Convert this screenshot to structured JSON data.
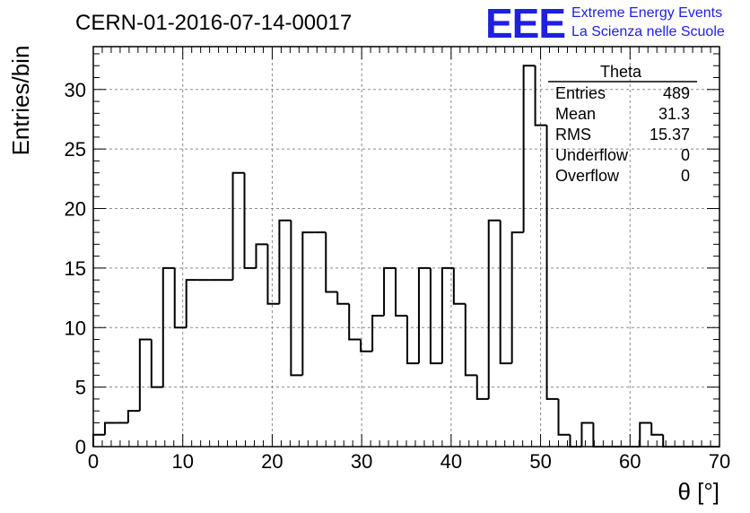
{
  "header": {
    "run_id": "CERN-01-2016-07-14-00017",
    "logo_mark": "EEE",
    "logo_line1": "Extreme Energy Events",
    "logo_line2": "La Scienza nelle Scuole",
    "logo_color": "#1f1fe0"
  },
  "stats": {
    "title": "Theta",
    "rows": [
      {
        "label": "Entries",
        "value": "489"
      },
      {
        "label": "Mean",
        "value": "31.3"
      },
      {
        "label": "RMS",
        "value": "15.37"
      },
      {
        "label": "Underflow",
        "value": "0"
      },
      {
        "label": "Overflow",
        "value": "0"
      }
    ]
  },
  "chart_data": {
    "type": "histogram",
    "xlabel": "θ [°]",
    "ylabel": "Entries/bin",
    "xlim": [
      0,
      70
    ],
    "ylim": [
      0,
      33.6
    ],
    "bin_width": 1.3,
    "x_ticks": [
      0,
      10,
      20,
      30,
      40,
      50,
      60,
      70
    ],
    "y_ticks": [
      0,
      5,
      10,
      15,
      20,
      25,
      30
    ],
    "grid": true,
    "line_color": "#000000",
    "counts": [
      1,
      2,
      2,
      3,
      9,
      5,
      15,
      10,
      14,
      14,
      14,
      14,
      23,
      15,
      17,
      12,
      19,
      6,
      18,
      18,
      13,
      12,
      9,
      8,
      11,
      15,
      11,
      7,
      15,
      7,
      15,
      12,
      6,
      4,
      19,
      7,
      18,
      32,
      27,
      4,
      1,
      0,
      2,
      0,
      0,
      0,
      0,
      2,
      1,
      0,
      0,
      0,
      0,
      0
    ]
  }
}
